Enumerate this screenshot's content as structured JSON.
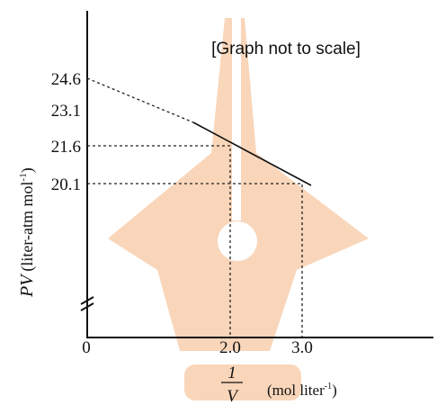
{
  "graph": {
    "note": "[Graph not to scale]",
    "y_axis": {
      "symbol": "PV",
      "unit": "(liter-atm mol",
      "unit_exp": "-1",
      "unit_close": ")",
      "ticks": [
        "24.6",
        "23.1",
        "21.6",
        "20.1"
      ]
    },
    "x_axis": {
      "numerator": "1",
      "denominator": "V",
      "unit": "(mol liter",
      "unit_exp": "-1",
      "unit_close": ")",
      "origin": "0",
      "ticks": [
        "2.0",
        "3.0"
      ]
    }
  }
}
